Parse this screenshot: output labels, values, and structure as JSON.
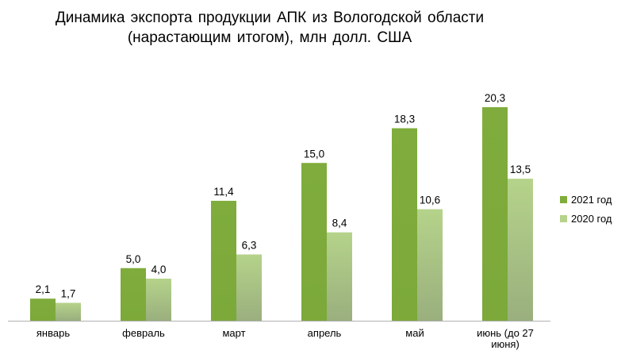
{
  "chart_data": {
    "type": "bar",
    "title_lines": [
      "Динамика  экспорта продукции  АПК из Вологодской области",
      "(нарастающим  итогом), млн  долл. США"
    ],
    "categories": [
      [
        "январь"
      ],
      [
        "февраль"
      ],
      [
        "март"
      ],
      [
        "апрель"
      ],
      [
        "май"
      ],
      [
        "июнь (до 27",
        "июня)"
      ]
    ],
    "series": [
      {
        "name": "2021 год",
        "values": [
          2.1,
          5.0,
          11.4,
          15.0,
          18.3,
          20.3
        ],
        "labels": [
          "2,1",
          "5,0",
          "11,4",
          "15,0",
          "18,3",
          "20,3"
        ],
        "colors": [
          "#7fac3c",
          "#7ca93a"
        ]
      },
      {
        "name": "2020 год",
        "values": [
          1.7,
          4.0,
          6.3,
          8.4,
          10.6,
          13.5
        ],
        "labels": [
          "1,7",
          "4,0",
          "6,3",
          "8,4",
          "10,6",
          "13,5"
        ],
        "colors": [
          "#b5d38a",
          "#9aaf7e"
        ]
      }
    ],
    "ylim": [
      0,
      22
    ],
    "grid": false,
    "legend": "right"
  }
}
